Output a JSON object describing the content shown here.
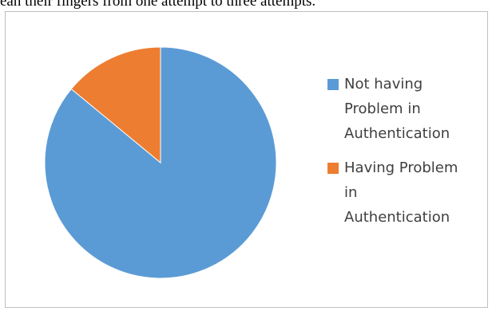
{
  "document": {
    "caption_fragment": "ean their fingers from one attempt to three attempts."
  },
  "chart_data": {
    "type": "pie",
    "title": "",
    "start_angle_deg": 0,
    "direction": "clockwise",
    "legend_position": "right",
    "slices": [
      {
        "label": "Not having Problem in Authentication",
        "label_lines": [
          "Not having",
          "Problem in",
          "Authentication"
        ],
        "value": 86,
        "color": "#5b9bd5"
      },
      {
        "label": "Having Problem in Authentication",
        "label_lines": [
          "Having Problem",
          "in",
          "Authentication"
        ],
        "value": 14,
        "color": "#ed7d31"
      }
    ]
  }
}
